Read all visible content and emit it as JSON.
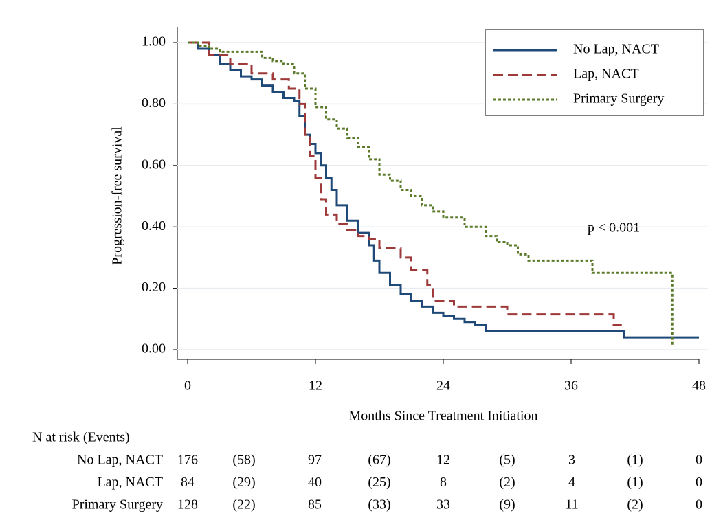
{
  "chart_data": {
    "type": "step",
    "y_label": "Progression-free survival",
    "x_label": "Months Since Treatment Initiation",
    "annotation": "p < 0.001",
    "xlim": [
      0,
      48
    ],
    "xticks": [
      0,
      12,
      24,
      36,
      48
    ],
    "ylim": [
      0,
      1
    ],
    "yticks": [
      {
        "value": 0,
        "label": "0.00"
      },
      {
        "value": 0.2,
        "label": "0.20"
      },
      {
        "value": 0.4,
        "label": "0.40"
      },
      {
        "value": 0.6,
        "label": "0.60"
      },
      {
        "value": 0.8,
        "label": "0.80"
      },
      {
        "value": 1,
        "label": "1.00"
      }
    ],
    "grid": true,
    "legend_position": "upper right",
    "series": [
      {
        "name": "No Lap, NACT",
        "color": "#1f4a78",
        "line_style": "solid",
        "x": [
          0,
          1,
          2,
          3,
          4,
          5,
          6,
          7,
          8,
          9,
          10,
          10.5,
          11,
          11.5,
          12,
          12.5,
          13,
          13.5,
          14,
          15,
          16,
          17,
          17.5,
          18,
          19,
          20,
          21,
          22,
          23,
          24,
          25,
          26,
          27,
          28,
          40,
          41,
          48
        ],
        "values": [
          1.0,
          0.98,
          0.96,
          0.93,
          0.91,
          0.89,
          0.88,
          0.86,
          0.84,
          0.82,
          0.81,
          0.76,
          0.7,
          0.67,
          0.64,
          0.6,
          0.56,
          0.52,
          0.47,
          0.42,
          0.38,
          0.34,
          0.29,
          0.25,
          0.21,
          0.18,
          0.16,
          0.14,
          0.12,
          0.11,
          0.1,
          0.09,
          0.08,
          0.06,
          0.06,
          0.04,
          0.04
        ]
      },
      {
        "name": "Lap, NACT",
        "color": "#9e3a3a",
        "line_style": "dashed",
        "x": [
          0,
          2,
          4,
          6,
          8,
          9.5,
          10.5,
          11,
          11.5,
          12,
          12.5,
          13,
          14,
          15,
          16,
          17,
          18,
          20,
          21,
          22.5,
          23,
          25,
          30,
          40,
          41
        ],
        "values": [
          1.0,
          0.96,
          0.93,
          0.9,
          0.88,
          0.85,
          0.8,
          0.7,
          0.63,
          0.56,
          0.49,
          0.44,
          0.41,
          0.39,
          0.37,
          0.36,
          0.33,
          0.3,
          0.26,
          0.21,
          0.16,
          0.14,
          0.115,
          0.08,
          0.08
        ]
      },
      {
        "name": "Primary Surgery",
        "color": "#5b7b2b",
        "line_style": "dotted",
        "x": [
          0,
          1,
          2,
          3,
          7,
          8,
          9,
          10,
          11,
          12,
          13,
          14,
          15,
          16,
          17,
          18,
          19,
          20,
          21,
          22,
          23,
          24,
          26,
          28,
          29,
          30,
          31,
          32,
          33,
          38,
          45.5
        ],
        "values": [
          1.0,
          0.99,
          0.98,
          0.97,
          0.95,
          0.94,
          0.93,
          0.9,
          0.85,
          0.79,
          0.75,
          0.72,
          0.69,
          0.66,
          0.62,
          0.57,
          0.55,
          0.52,
          0.5,
          0.47,
          0.45,
          0.43,
          0.4,
          0.37,
          0.35,
          0.34,
          0.31,
          0.29,
          0.29,
          0.25,
          0.01
        ]
      }
    ],
    "risk_table": {
      "title": "N at risk (Events)",
      "rows": [
        {
          "name": "No Lap, NACT",
          "values": [
            "176",
            "(58)",
            "97",
            "(67)",
            "12",
            "(5)",
            "3",
            "(1)",
            "0"
          ]
        },
        {
          "name": "Lap, NACT",
          "values": [
            "84",
            "(29)",
            "40",
            "(25)",
            "8",
            "(2)",
            "4",
            "(1)",
            "0"
          ]
        },
        {
          "name": "Primary Surgery",
          "values": [
            "128",
            "(22)",
            "85",
            "(33)",
            "33",
            "(9)",
            "11",
            "(2)",
            "0"
          ]
        }
      ]
    }
  }
}
